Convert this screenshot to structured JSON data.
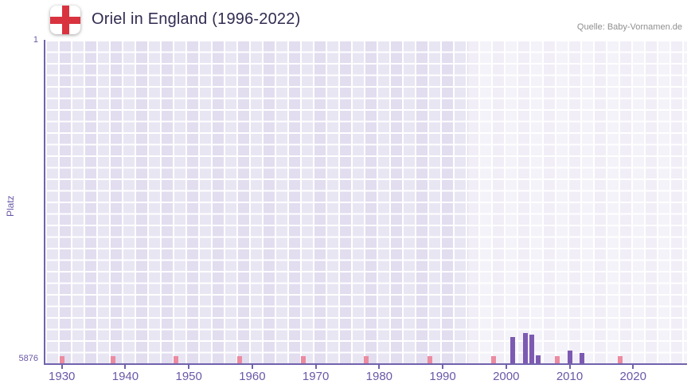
{
  "header": {
    "title": "Oriel in England (1996-2022)",
    "source": "Quelle: Baby-Vornamen.de",
    "flag_icon": "england-flag"
  },
  "chart_data": {
    "type": "bar",
    "title": "Oriel in England (1996-2022)",
    "xlabel": "",
    "ylabel": "Platz",
    "grid": true,
    "legend": null,
    "y_axis": {
      "top_label": "1",
      "bottom_label": "5876",
      "min": 1,
      "max": 5876,
      "inverted": true
    },
    "x_axis": {
      "range_start": 1927.4,
      "range_end": 2028.5,
      "tick_years": [
        1930,
        1940,
        1950,
        1960,
        1970,
        1980,
        1990,
        2000,
        2010,
        2020
      ]
    },
    "highlight_start_year": 1994,
    "series": [
      {
        "name": "Platz",
        "points": [
          {
            "year": 2001,
            "rank": 5400
          },
          {
            "year": 2003,
            "rank": 5330
          },
          {
            "year": 2004,
            "rank": 5350
          },
          {
            "year": 2005,
            "rank": 5730
          },
          {
            "year": 2010,
            "rank": 5645
          },
          {
            "year": 2012,
            "rank": 5685
          }
        ]
      }
    ],
    "decade_marker_years": [
      1930,
      1938,
      1948,
      1958,
      1968,
      1978,
      1988,
      1998,
      2008,
      2018
    ],
    "colors": {
      "bar": "#7d5ab2",
      "marker": "#ec8ba0",
      "axis": "#7163ad",
      "tick_label": "#6b58a8",
      "plot_bg": "#e2ddef",
      "grid_line": "#ffffff",
      "title": "#332c52",
      "source": "#8f8f8f",
      "flag_cross": "#d8333f"
    }
  }
}
